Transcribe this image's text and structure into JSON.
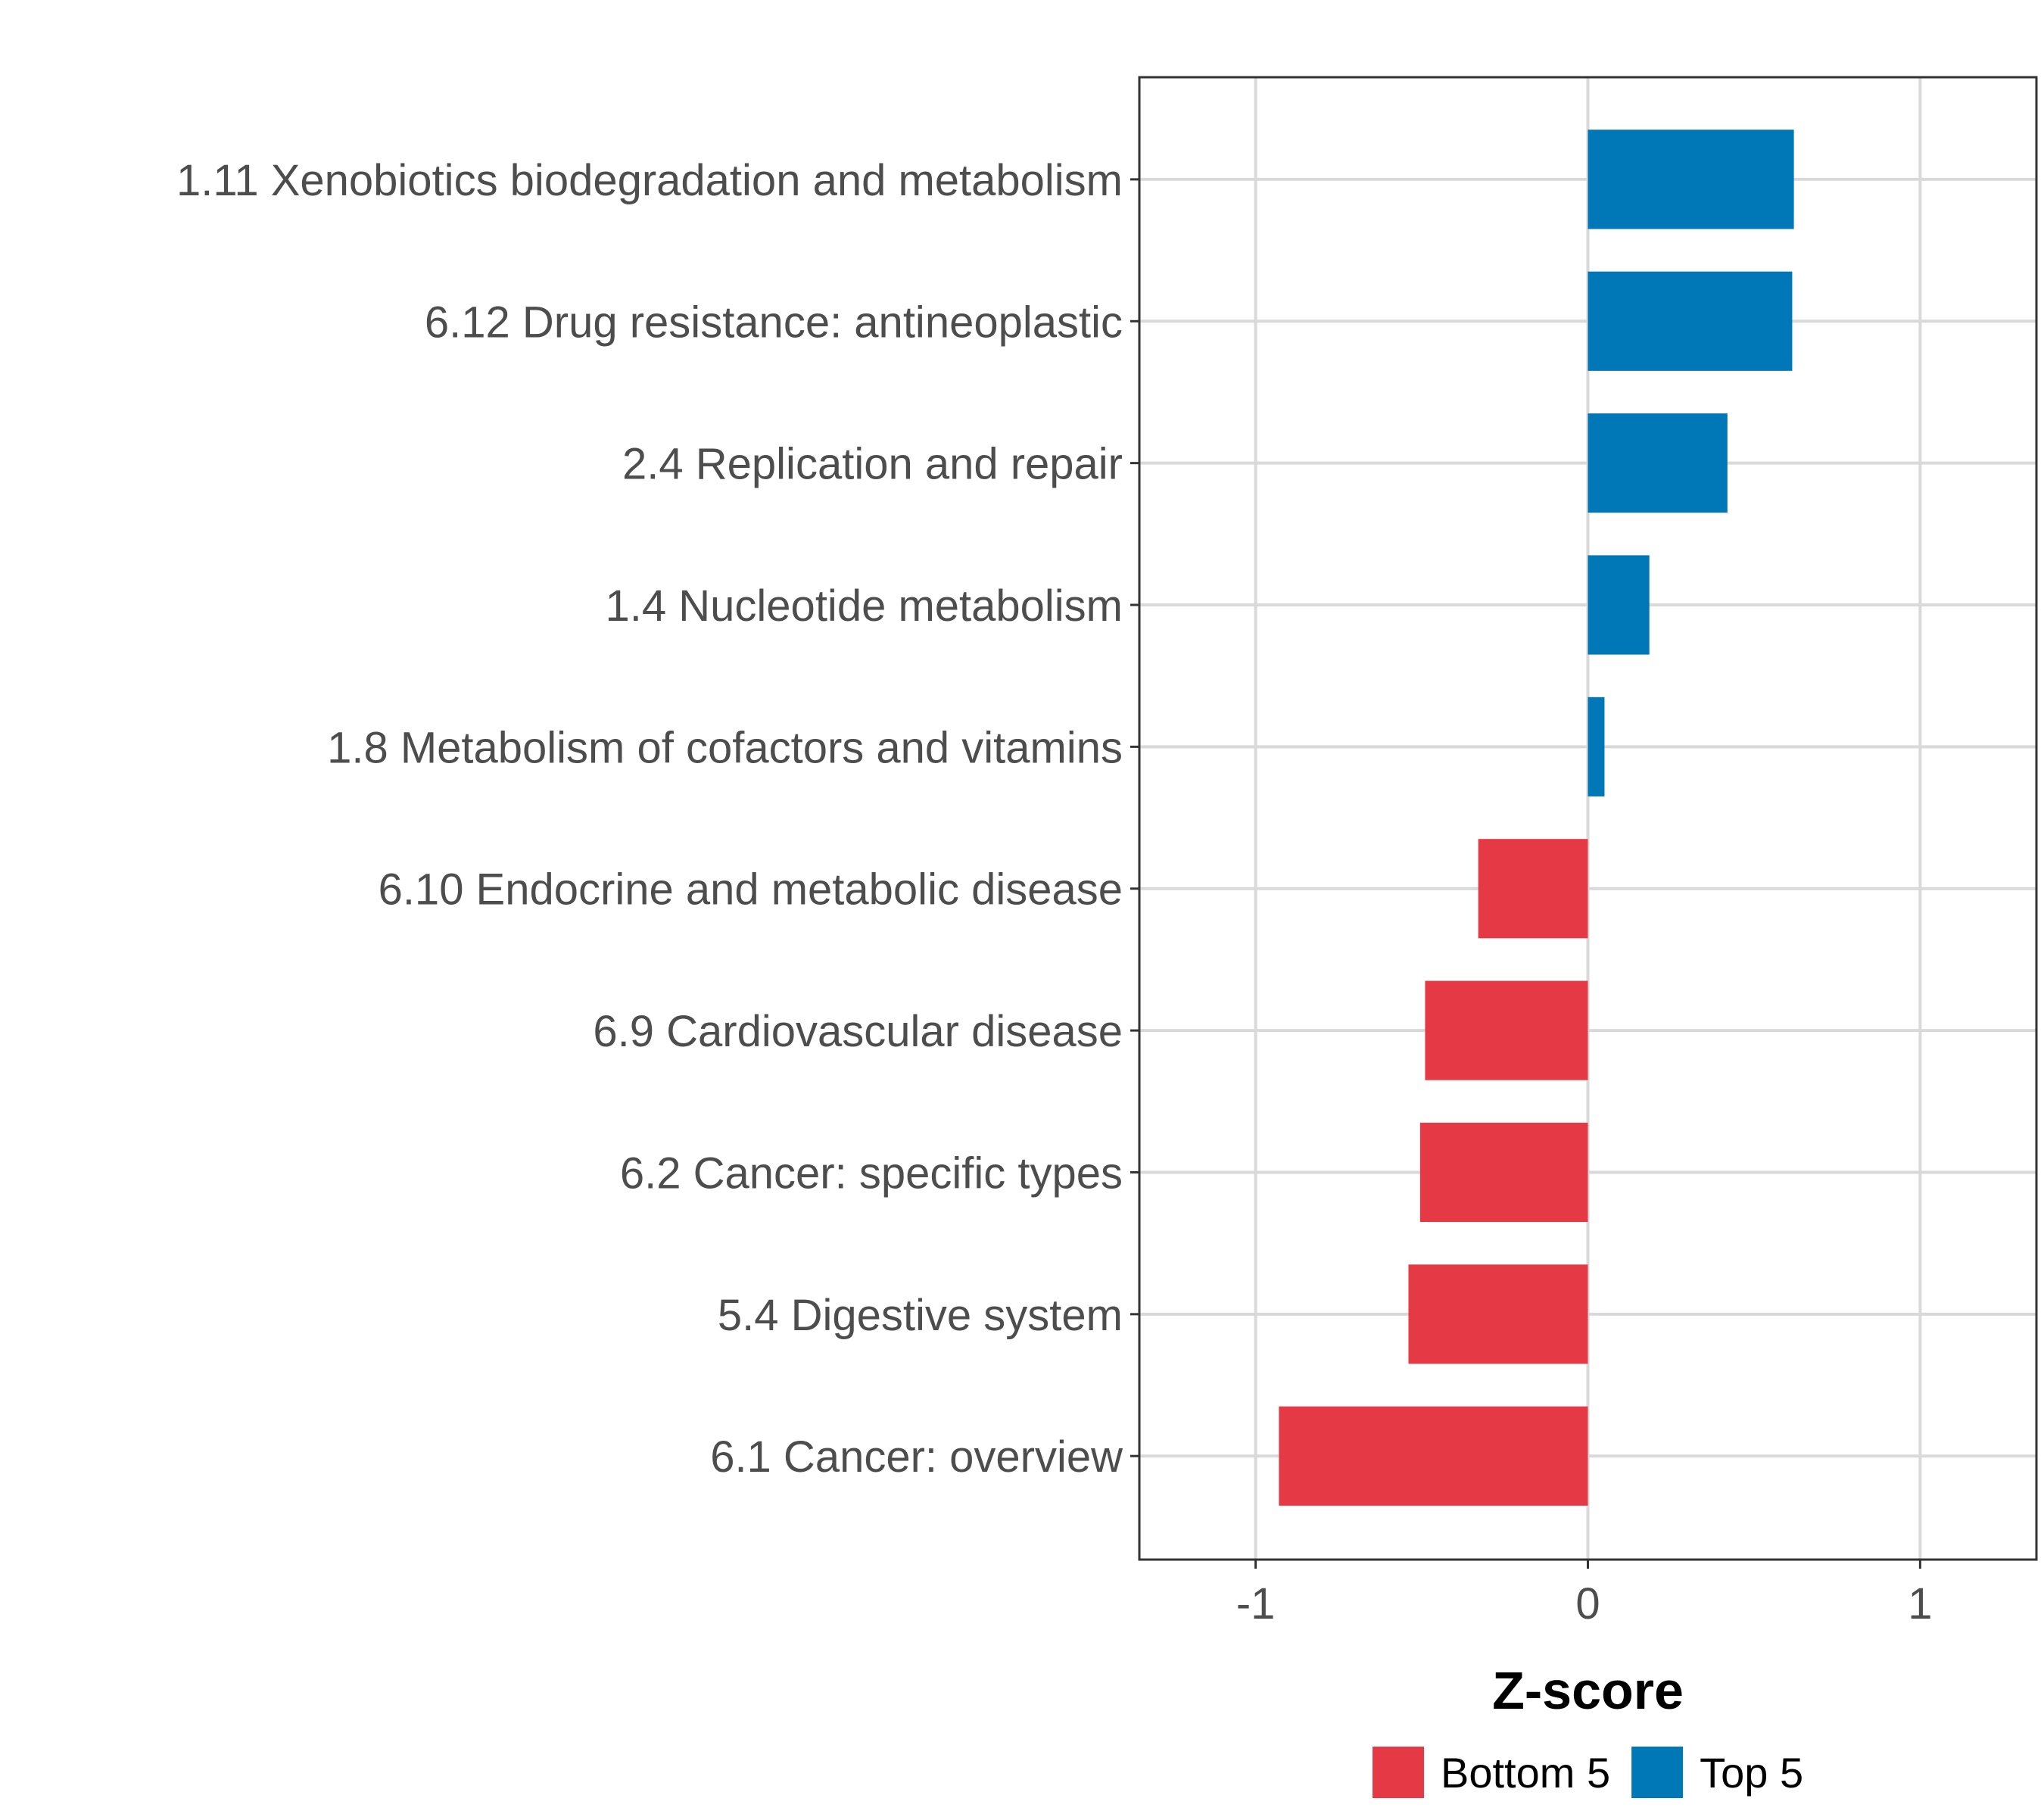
{
  "chart_data": {
    "type": "bar",
    "orientation": "horizontal",
    "title": "",
    "xlabel": "Z-score",
    "ylabel": "",
    "xlim": [
      -1.35,
      1.35
    ],
    "xticks": [
      -1,
      0,
      1
    ],
    "xtick_labels": [
      "-1",
      "0",
      "1"
    ],
    "grid": true,
    "categories": [
      "1.11 Xenobiotics biodegradation and metabolism",
      "6.12 Drug resistance: antineoplastic",
      "2.4 Replication and repair",
      "1.4 Nucleotide metabolism",
      "1.8 Metabolism of cofactors and vitamins",
      "6.10 Endocrine and metabolic disease",
      "6.9 Cardiovascular disease",
      "6.2 Cancer: specific types",
      "5.4 Digestive system",
      "6.1 Cancer: overview"
    ],
    "values": [
      0.62,
      0.615,
      0.42,
      0.185,
      0.05,
      -0.33,
      -0.49,
      -0.505,
      -0.54,
      -0.93
    ],
    "groups": [
      "Top 5",
      "Top 5",
      "Top 5",
      "Top 5",
      "Top 5",
      "Bottom 5",
      "Bottom 5",
      "Bottom 5",
      "Bottom 5",
      "Bottom 5"
    ],
    "legend": {
      "position": "bottom",
      "entries": [
        {
          "label": "Bottom 5",
          "color": "#e63946"
        },
        {
          "label": "Top 5",
          "color": "#0077b6"
        }
      ]
    },
    "colors": {
      "Top 5": "#0077b6",
      "Bottom 5": "#e63946"
    }
  }
}
